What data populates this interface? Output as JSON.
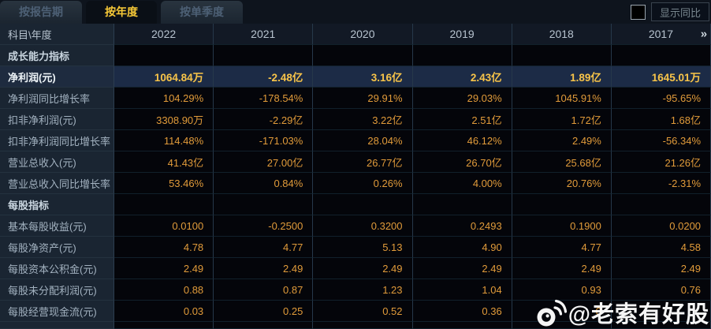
{
  "tabs": [
    {
      "label": "按报告期",
      "active": false
    },
    {
      "label": "按年度",
      "active": true
    },
    {
      "label": "按单季度",
      "active": false
    }
  ],
  "controls": {
    "show_yoy_label": "显示同比",
    "checkbox_checked": false
  },
  "table": {
    "corner_label": "科目\\年度",
    "years": [
      "2022",
      "2021",
      "2020",
      "2019",
      "2018",
      "2017"
    ],
    "more_icon": "»",
    "rows": [
      {
        "type": "section",
        "label": "成长能力指标",
        "values": [
          "",
          "",
          "",
          "",
          "",
          ""
        ]
      },
      {
        "type": "highlight",
        "label": "净利润(元)",
        "values": [
          "1064.84万",
          "-2.48亿",
          "3.16亿",
          "2.43亿",
          "1.89亿",
          "1645.01万"
        ]
      },
      {
        "type": "data",
        "label": "净利润同比增长率",
        "values": [
          "104.29%",
          "-178.54%",
          "29.91%",
          "29.03%",
          "1045.91%",
          "-95.65%"
        ]
      },
      {
        "type": "data",
        "label": "扣非净利润(元)",
        "values": [
          "3308.90万",
          "-2.29亿",
          "3.22亿",
          "2.51亿",
          "1.72亿",
          "1.68亿"
        ]
      },
      {
        "type": "data",
        "label": "扣非净利润同比增长率",
        "values": [
          "114.48%",
          "-171.03%",
          "28.04%",
          "46.12%",
          "2.49%",
          "-56.34%"
        ]
      },
      {
        "type": "data",
        "label": "营业总收入(元)",
        "values": [
          "41.43亿",
          "27.00亿",
          "26.77亿",
          "26.70亿",
          "25.68亿",
          "21.26亿"
        ]
      },
      {
        "type": "data",
        "label": "营业总收入同比增长率",
        "values": [
          "53.46%",
          "0.84%",
          "0.26%",
          "4.00%",
          "20.76%",
          "-2.31%"
        ]
      },
      {
        "type": "section",
        "label": "每股指标",
        "values": [
          "",
          "",
          "",
          "",
          "",
          ""
        ]
      },
      {
        "type": "data",
        "label": "基本每股收益(元)",
        "values": [
          "0.0100",
          "-0.2500",
          "0.3200",
          "0.2493",
          "0.1900",
          "0.0200"
        ]
      },
      {
        "type": "data",
        "label": "每股净资产(元)",
        "values": [
          "4.78",
          "4.77",
          "5.13",
          "4.90",
          "4.77",
          "4.58"
        ]
      },
      {
        "type": "data",
        "label": "每股资本公积金(元)",
        "values": [
          "2.49",
          "2.49",
          "2.49",
          "2.49",
          "2.49",
          "2.49"
        ]
      },
      {
        "type": "data",
        "label": "每股未分配利润(元)",
        "values": [
          "0.88",
          "0.87",
          "1.23",
          "1.04",
          "0.93",
          "0.76"
        ]
      },
      {
        "type": "data",
        "label": "每股经营现金流(元)",
        "values": [
          "0.03",
          "0.25",
          "0.52",
          "0.36",
          "0",
          ""
        ]
      }
    ]
  },
  "watermark": {
    "icon": "weibo-icon",
    "text": "@老索有好股"
  },
  "colors": {
    "active_tab_text": "#f7c937",
    "value_text": "#e19b3a",
    "highlight_value_text": "#f8c449",
    "highlight_row_bg": "#1c2b46",
    "label_column_bg": "#1a2532",
    "data_cell_bg": "#04050a"
  }
}
